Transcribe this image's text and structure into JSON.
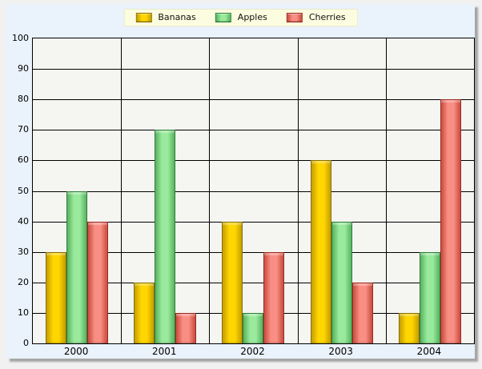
{
  "page": {
    "background_color": "#F1F1F1",
    "panel_background_color": "#EAF2FC",
    "panel_shadow_color": "#7D7D7D"
  },
  "legend": {
    "background_color": "#FCFCE0",
    "position": "top-center"
  },
  "chart_data": {
    "type": "bar",
    "title": "",
    "xlabel": "",
    "ylabel": "",
    "categories": [
      "2000",
      "2001",
      "2002",
      "2003",
      "2004"
    ],
    "series": [
      {
        "name": "Bananas",
        "values": [
          30,
          20,
          40,
          60,
          10
        ],
        "color_center": "#FFD600",
        "color_edge": "#C49D00",
        "color_border": "#8A6D00"
      },
      {
        "name": "Apples",
        "values": [
          50,
          70,
          10,
          40,
          30
        ],
        "color_center": "#9AEA9E",
        "color_edge": "#55B25C",
        "color_border": "#2E7D36"
      },
      {
        "name": "Cherries",
        "values": [
          40,
          10,
          30,
          20,
          80
        ],
        "color_center": "#F98F84",
        "color_edge": "#C94A3C",
        "color_border": "#99291F"
      }
    ],
    "ylim": [
      0,
      100
    ],
    "yticks": [
      0,
      10,
      20,
      30,
      40,
      50,
      60,
      70,
      80,
      90,
      100
    ],
    "grid": true,
    "legend_position": "top",
    "plot_background_color": "#F5F5F2",
    "gridline_color": "#000000"
  }
}
